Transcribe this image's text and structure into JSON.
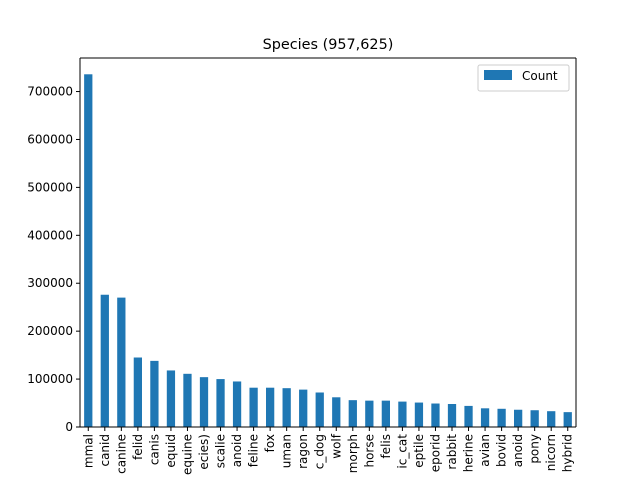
{
  "chart_data": {
    "type": "bar",
    "title": "Species (957,625)",
    "xlabel": "",
    "ylabel": "",
    "categories": [
      "mammal",
      "canid",
      "canine",
      "felid",
      "canis",
      "equid",
      "equine",
      "(species)",
      "scalie",
      "canoid",
      "feline",
      "fox",
      "human",
      "dragon",
      "domestic_dog",
      "wolf",
      "morph",
      "horse",
      "felis",
      "domestic_cat",
      "reptile",
      "leporid",
      "rabbit",
      "mustelid_like_erine",
      "avian",
      "bovid",
      "humanoid",
      "pony",
      "unicorn",
      "hybrid"
    ],
    "series": [
      {
        "name": "Count",
        "values": [
          736000,
          276000,
          270000,
          145000,
          138000,
          118000,
          111000,
          104000,
          100000,
          95000,
          82000,
          82000,
          81000,
          78000,
          72000,
          62000,
          56000,
          55000,
          55000,
          53000,
          51000,
          49000,
          48000,
          44000,
          39000,
          38000,
          36000,
          35000,
          33000,
          31000
        ]
      }
    ],
    "ylim": [
      0,
      770000
    ],
    "yticks": [
      "0",
      "100000",
      "200000",
      "300000",
      "400000",
      "500000",
      "600000",
      "700000"
    ],
    "tick_labels_visible": [
      "mmal",
      "canid",
      "canine",
      "felid",
      "canis",
      "equid",
      "equine",
      "ecies)",
      "scalie",
      "anoid",
      "feline",
      "fox",
      "uman",
      "ragon",
      "c_dog",
      "wolf",
      "morph",
      "horse",
      "felis",
      "ic_cat",
      "eptile",
      "eporid",
      "rabbit",
      "herine",
      "avian",
      "bovid",
      "anoid",
      "pony",
      "nicorn",
      "hybrid"
    ],
    "legend": {
      "entries": [
        "Count"
      ],
      "placement": "top-right"
    },
    "grid": false,
    "colors": {
      "bar": "#1f77b4",
      "axis": "#000000",
      "background": "#ffffff"
    }
  }
}
